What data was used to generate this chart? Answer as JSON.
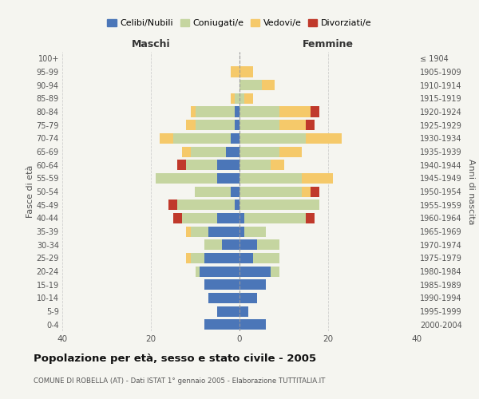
{
  "age_groups": [
    "0-4",
    "5-9",
    "10-14",
    "15-19",
    "20-24",
    "25-29",
    "30-34",
    "35-39",
    "40-44",
    "45-49",
    "50-54",
    "55-59",
    "60-64",
    "65-69",
    "70-74",
    "75-79",
    "80-84",
    "85-89",
    "90-94",
    "95-99",
    "100+"
  ],
  "birth_years": [
    "2000-2004",
    "1995-1999",
    "1990-1994",
    "1985-1989",
    "1980-1984",
    "1975-1979",
    "1970-1974",
    "1965-1969",
    "1960-1964",
    "1955-1959",
    "1950-1954",
    "1945-1949",
    "1940-1944",
    "1935-1939",
    "1930-1934",
    "1925-1929",
    "1920-1924",
    "1915-1919",
    "1910-1914",
    "1905-1909",
    "≤ 1904"
  ],
  "colors": {
    "celibi": "#4b76b8",
    "coniugati": "#c5d5a0",
    "vedovi": "#f5c96a",
    "divorziati": "#c0392b"
  },
  "maschi": {
    "celibi": [
      8,
      5,
      7,
      8,
      9,
      8,
      4,
      7,
      5,
      1,
      2,
      5,
      5,
      3,
      2,
      1,
      1,
      0,
      0,
      0,
      0
    ],
    "coniugati": [
      0,
      0,
      0,
      0,
      1,
      3,
      4,
      4,
      8,
      13,
      8,
      14,
      7,
      8,
      13,
      9,
      9,
      1,
      0,
      0,
      0
    ],
    "vedovi": [
      0,
      0,
      0,
      0,
      0,
      1,
      0,
      1,
      0,
      0,
      0,
      0,
      0,
      2,
      3,
      2,
      1,
      1,
      0,
      2,
      0
    ],
    "divorziati": [
      0,
      0,
      0,
      0,
      0,
      0,
      0,
      0,
      2,
      2,
      0,
      0,
      2,
      0,
      0,
      0,
      0,
      0,
      0,
      0,
      0
    ]
  },
  "femmine": {
    "celibi": [
      6,
      2,
      4,
      6,
      7,
      3,
      4,
      1,
      1,
      0,
      0,
      0,
      0,
      0,
      0,
      0,
      0,
      0,
      0,
      0,
      0
    ],
    "coniugati": [
      0,
      0,
      0,
      0,
      2,
      6,
      5,
      5,
      14,
      18,
      14,
      14,
      7,
      9,
      15,
      9,
      9,
      1,
      5,
      0,
      0
    ],
    "vedovi": [
      0,
      0,
      0,
      0,
      0,
      0,
      0,
      0,
      0,
      0,
      2,
      7,
      3,
      5,
      8,
      6,
      7,
      2,
      3,
      3,
      0
    ],
    "divorziati": [
      0,
      0,
      0,
      0,
      0,
      0,
      0,
      0,
      2,
      0,
      2,
      0,
      0,
      0,
      0,
      2,
      2,
      0,
      0,
      0,
      0
    ]
  },
  "title": "Popolazione per età, sesso e stato civile - 2005",
  "subtitle": "COMUNE DI ROBELLA (AT) - Dati ISTAT 1° gennaio 2005 - Elaborazione TUTTITALIA.IT",
  "xlabel_left": "Maschi",
  "xlabel_right": "Femmine",
  "ylabel_left": "Fasce di età",
  "ylabel_right": "Anni di nascita",
  "xlim": 40,
  "legend_labels": [
    "Celibi/Nubili",
    "Coniugati/e",
    "Vedovi/e",
    "Divorziati/e"
  ],
  "background_color": "#f5f5f0",
  "plot_bg": "#f5f5f0",
  "grid_color": "#cccccc"
}
